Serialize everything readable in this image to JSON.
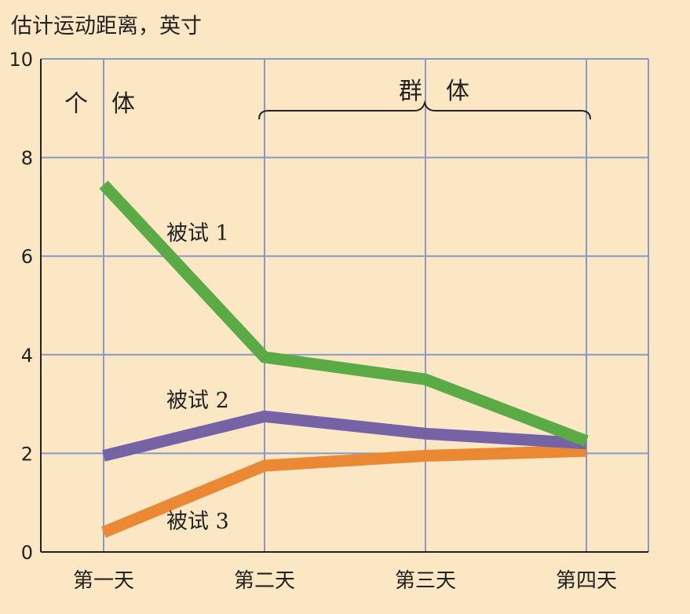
{
  "chart_data": {
    "type": "line",
    "title": "估计运动距离，英寸",
    "categories": [
      "第一天",
      "第二天",
      "第三天",
      "第四天"
    ],
    "ylim": [
      0,
      10
    ],
    "yticks": [
      "0",
      "2",
      "4",
      "6",
      "8",
      "10"
    ],
    "grid": true,
    "group_labels": {
      "individual": "个　体",
      "group": "群　体"
    },
    "series": [
      {
        "name": "被试 1",
        "color": "#5aab46",
        "values": [
          7.45,
          3.95,
          3.5,
          2.25
        ]
      },
      {
        "name": "被试 2",
        "color": "#7563a6",
        "values": [
          1.95,
          2.75,
          2.4,
          2.2
        ]
      },
      {
        "name": "被试 3",
        "color": "#ea8834",
        "values": [
          0.4,
          1.75,
          1.95,
          2.05
        ]
      }
    ]
  }
}
